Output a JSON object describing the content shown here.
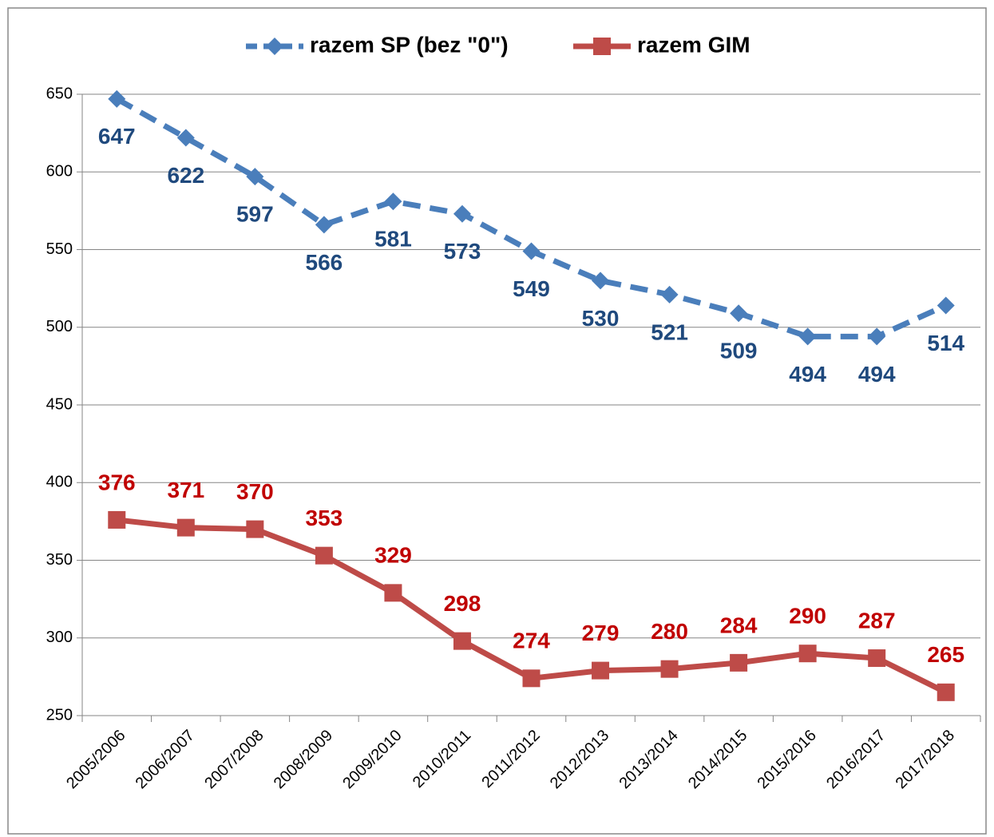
{
  "chart_data": {
    "type": "line",
    "categories": [
      "2005/2006",
      "2006/2007",
      "2007/2008",
      "2008/2009",
      "2009/2010",
      "2010/2011",
      "2011/2012",
      "2012/2013",
      "2013/2014",
      "2014/2015",
      "2015/2016",
      "2016/2017",
      "2017/2018"
    ],
    "series": [
      {
        "name": "razem SP (bez \"0\")",
        "color": "#4a7ebb",
        "label_color": "#1f497d",
        "dashed": true,
        "marker": "diamond",
        "label_position": "below",
        "values": [
          647,
          622,
          597,
          566,
          581,
          573,
          549,
          530,
          521,
          509,
          494,
          494,
          514
        ]
      },
      {
        "name": "razem GIM",
        "color": "#be4b48",
        "label_color": "#c00000",
        "dashed": false,
        "marker": "square",
        "label_position": "above",
        "values": [
          376,
          371,
          370,
          353,
          329,
          298,
          274,
          279,
          280,
          284,
          290,
          287,
          265
        ]
      }
    ],
    "ylim": [
      250,
      650
    ],
    "yticks": [
      250,
      300,
      350,
      400,
      450,
      500,
      550,
      600,
      650
    ],
    "grid": true,
    "legend": "top"
  }
}
